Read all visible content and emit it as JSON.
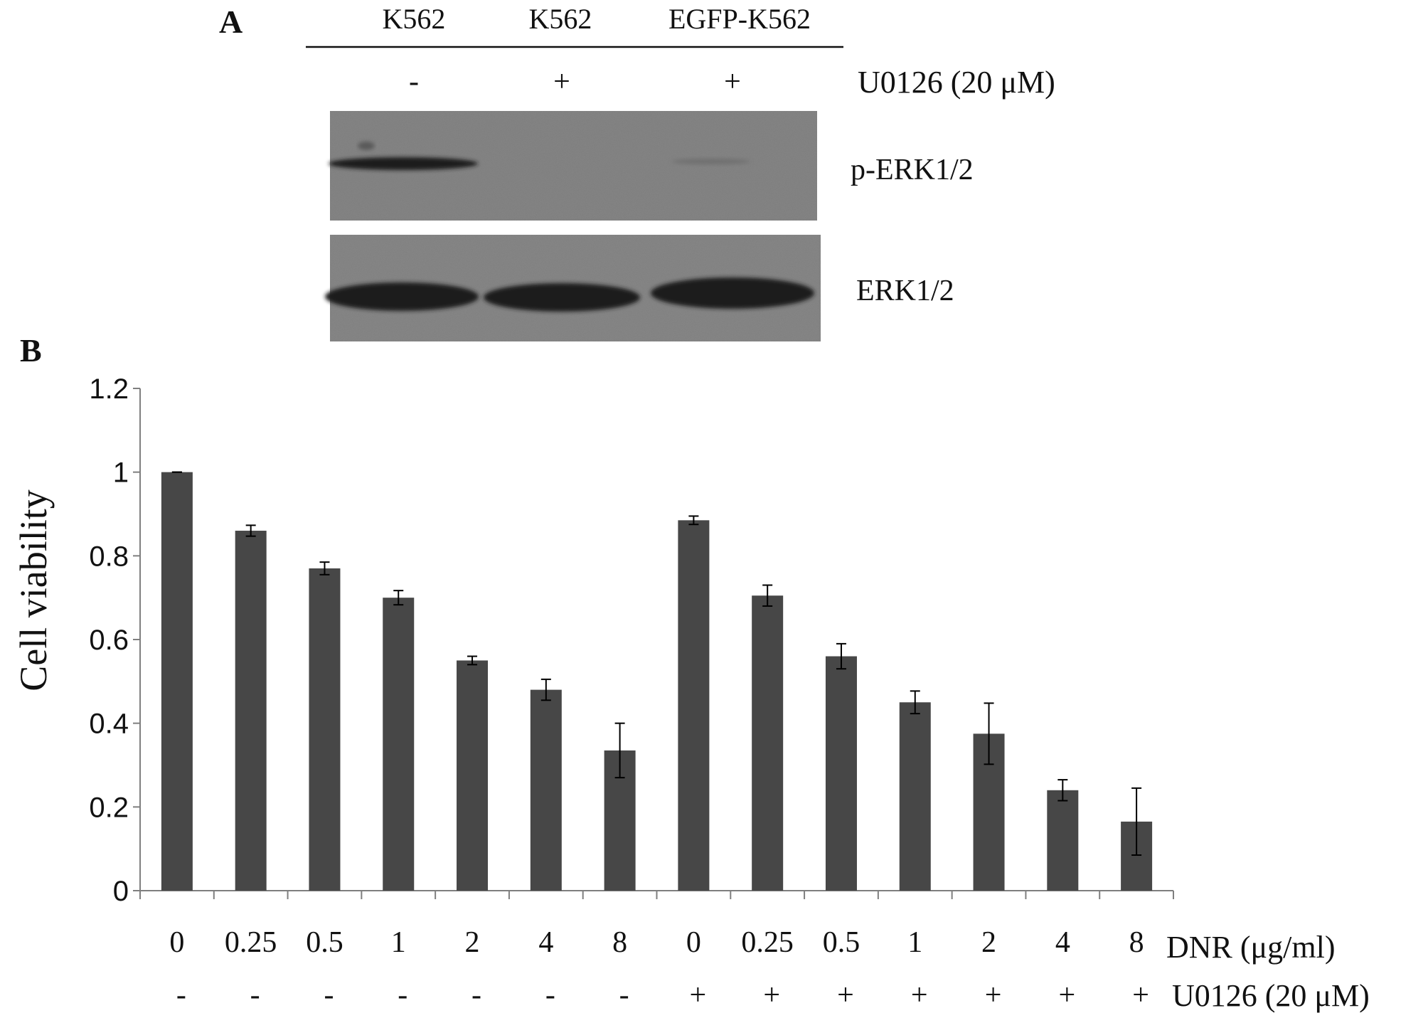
{
  "colors": {
    "bar": "#474747",
    "axis": "#7f7f7f",
    "text": "#111111",
    "blot_bg": "#7d7d7d",
    "band": "#1e1e1e"
  },
  "panel_a": {
    "label": "A",
    "cell_lines": [
      "K562",
      "K562",
      "EGFP-K562"
    ],
    "treatment_signs": [
      "-",
      "+",
      "+"
    ],
    "treatment_label": "U0126 (20 μM)",
    "blot_rows": [
      "p-ERK1/2",
      "ERK1/2"
    ]
  },
  "panel_b": {
    "label": "B",
    "dnr_row_label": "DNR (μg/ml)",
    "u0126_row_label": "U0126 (20 μM)"
  },
  "chart_data": {
    "type": "bar",
    "title": "",
    "ylabel": "Cell viability",
    "xlabel": "",
    "ylim": [
      0,
      1.2
    ],
    "yticks": [
      "0",
      "0.2",
      "0.4",
      "0.6",
      "0.8",
      "1",
      "1.2"
    ],
    "categories": [
      "0",
      "0.25",
      "0.5",
      "1",
      "2",
      "4",
      "8",
      "0",
      "0.25",
      "0.5",
      "1",
      "2",
      "4",
      "8"
    ],
    "u0126": [
      "-",
      "-",
      "-",
      "-",
      "-",
      "-",
      "-",
      "+",
      "+",
      "+",
      "+",
      "+",
      "+",
      "+"
    ],
    "values": [
      1.0,
      0.86,
      0.77,
      0.7,
      0.55,
      0.48,
      0.335,
      0.885,
      0.705,
      0.56,
      0.45,
      0.375,
      0.24,
      0.165
    ],
    "errors": [
      0.0,
      0.013,
      0.015,
      0.017,
      0.01,
      0.025,
      0.065,
      0.01,
      0.025,
      0.03,
      0.027,
      0.073,
      0.025,
      0.08
    ],
    "grid": false,
    "legend": "none"
  }
}
